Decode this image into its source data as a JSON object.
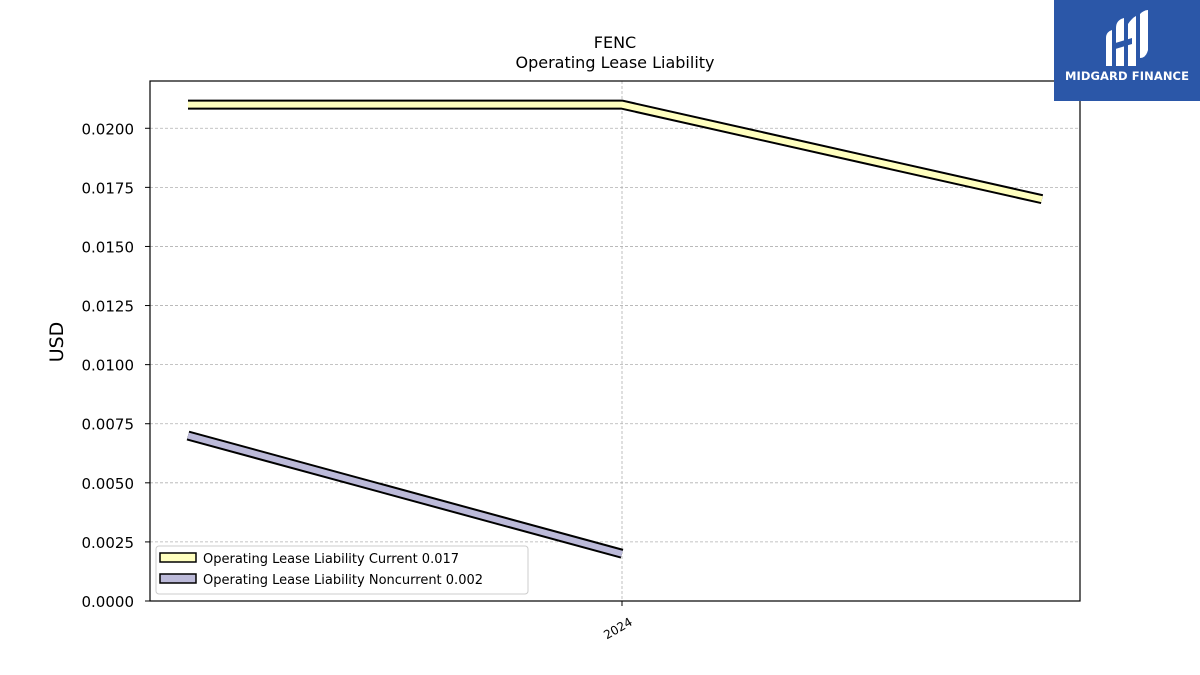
{
  "brand": {
    "name": "MIDGARD FINANCE",
    "color": "#2b57a8"
  },
  "chart_data": {
    "type": "line",
    "title": "FENC",
    "subtitle": "Operating Lease Liability",
    "ylabel": "USD",
    "xlabel": "",
    "ylim": [
      0,
      0.022
    ],
    "yticks": [
      "0.0000",
      "0.0025",
      "0.0050",
      "0.0075",
      "0.0100",
      "0.0125",
      "0.0150",
      "0.0175",
      "0.0200"
    ],
    "ytick_values": [
      0,
      0.0025,
      0.005,
      0.0075,
      0.01,
      0.0125,
      0.015,
      0.0175,
      0.02
    ],
    "xticks": [
      "2024"
    ],
    "grid": true,
    "legend_position": "lower-left",
    "series": [
      {
        "name": "Operating Lease Liability Current",
        "legend_label": "Operating Lease Liability Current  0.017",
        "color": "#ffffbf",
        "x": [
          "2023-07",
          "2024",
          "2024-07"
        ],
        "values": [
          0.021,
          0.021,
          0.017
        ]
      },
      {
        "name": "Operating Lease Liability Noncurrent",
        "legend_label": "Operating Lease Liability Noncurrent  0.002",
        "color": "#bcbad9",
        "x": [
          "2023-07",
          "2024"
        ],
        "values": [
          0.007,
          0.002
        ]
      }
    ]
  }
}
